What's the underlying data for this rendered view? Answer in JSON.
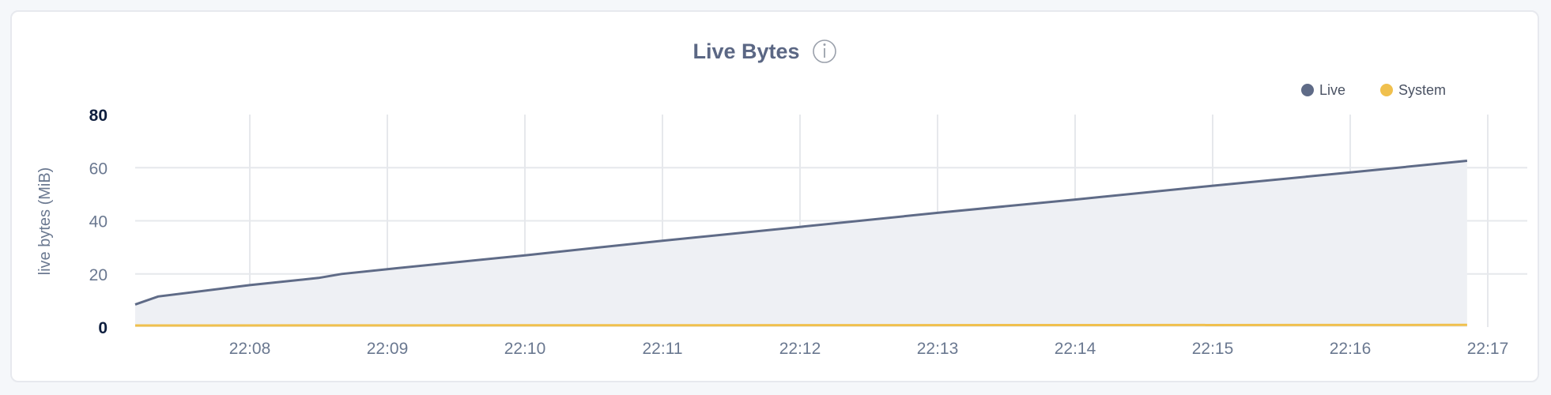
{
  "chart_data": {
    "type": "area",
    "title": "Live Bytes",
    "title_icon": "info-icon",
    "xlabel": "",
    "ylabel": "live bytes (MiB)",
    "ylim": [
      0,
      80
    ],
    "yticks": [
      "0",
      "20",
      "40",
      "60",
      "80"
    ],
    "xlim": [
      "22:07:10",
      "22:17:00"
    ],
    "xticks": [
      "22:08",
      "22:09",
      "22:10",
      "22:11",
      "22:12",
      "22:13",
      "22:14",
      "22:15",
      "22:16",
      "22:17"
    ],
    "grid": true,
    "legend_position": "top-right",
    "series": [
      {
        "name": "Live",
        "color": "#5f6b87",
        "fill": "#eef0f4",
        "x": [
          "22:07:10",
          "22:07:20",
          "22:08:00",
          "22:08:30",
          "22:08:40",
          "22:09:00",
          "22:10:00",
          "22:11:00",
          "22:12:00",
          "22:13:00",
          "22:14:00",
          "22:15:00",
          "22:16:00",
          "22:16:51"
        ],
        "y": [
          8.5,
          11.5,
          15.8,
          18.5,
          20,
          21.8,
          27,
          32.5,
          37.7,
          43,
          48,
          53.2,
          58.2,
          62.6
        ]
      },
      {
        "name": "System",
        "color": "#f0c04d",
        "x": [
          "22:07:10",
          "22:16:51"
        ],
        "y": [
          0.6,
          0.8
        ]
      }
    ]
  }
}
